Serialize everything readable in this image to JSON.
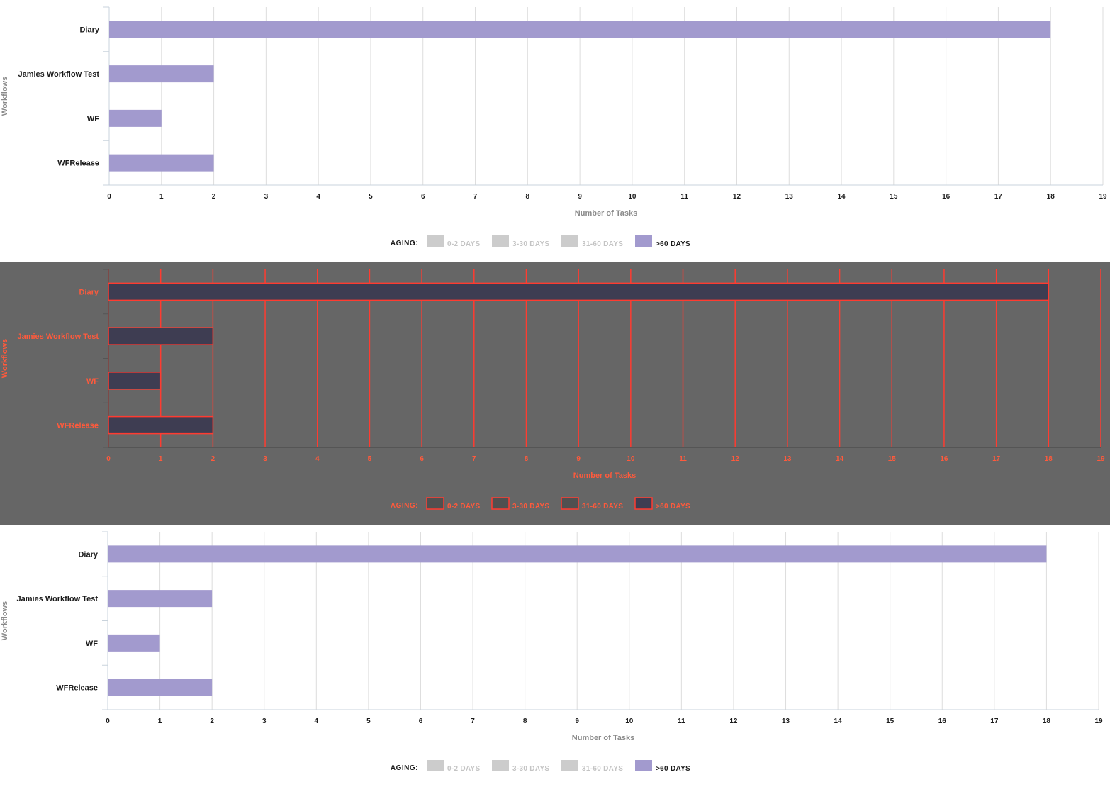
{
  "chart_data": [
    {
      "type": "bar",
      "orientation": "horizontal",
      "theme": "light",
      "categories": [
        "Diary",
        "Jamies Workflow Test",
        "WF",
        "WFRelease"
      ],
      "series": [
        {
          "name": ">60 DAYS",
          "values": [
            18,
            2,
            1,
            2
          ]
        }
      ],
      "xlabel": "Number of Tasks",
      "ylabel": "Workflows",
      "xlim": [
        0,
        19
      ],
      "grid": true,
      "legend_position": "bottom",
      "legend": {
        "title": "AGING:",
        "items": [
          {
            "label": "0-2 DAYS",
            "active": false
          },
          {
            "label": "3-30 DAYS",
            "active": false
          },
          {
            "label": "31-60 DAYS",
            "active": false
          },
          {
            "label": ">60 DAYS",
            "active": true
          }
        ]
      }
    },
    {
      "type": "bar",
      "orientation": "horizontal",
      "theme": "dark",
      "categories": [
        "Diary",
        "Jamies Workflow Test",
        "WF",
        "WFRelease"
      ],
      "series": [
        {
          "name": ">60 DAYS",
          "values": [
            18,
            2,
            1,
            2
          ]
        }
      ],
      "xlabel": "Number of Tasks",
      "ylabel": "Workflows",
      "xlim": [
        0,
        19
      ],
      "grid": true,
      "legend_position": "bottom",
      "legend": {
        "title": "AGING:",
        "items": [
          {
            "label": "0-2 DAYS",
            "active": false
          },
          {
            "label": "3-30 DAYS",
            "active": false
          },
          {
            "label": "31-60 DAYS",
            "active": false
          },
          {
            "label": ">60 DAYS",
            "active": true
          }
        ]
      }
    },
    {
      "type": "bar",
      "orientation": "horizontal",
      "theme": "light",
      "categories": [
        "Diary",
        "Jamies Workflow Test",
        "WF",
        "WFRelease"
      ],
      "series": [
        {
          "name": ">60 DAYS",
          "values": [
            18,
            2,
            1,
            2
          ]
        }
      ],
      "xlabel": "Number of Tasks",
      "ylabel": "Workflows",
      "xlim": [
        0,
        19
      ],
      "grid": true,
      "legend_position": "bottom",
      "legend": {
        "title": "AGING:",
        "items": [
          {
            "label": "0-2 DAYS",
            "active": false
          },
          {
            "label": "3-30 DAYS",
            "active": false
          },
          {
            "label": "31-60 DAYS",
            "active": false
          },
          {
            "label": ">60 DAYS",
            "active": true
          }
        ]
      }
    }
  ],
  "colors": {
    "bar": "#a29ace",
    "bar_dark": "#3e3d52",
    "legend_inactive": "#cccccc",
    "legend_inactive_text": "#c4c4c4",
    "legend_inactive_dark": "#505050",
    "gridline": "#dddddd",
    "gridline_dark": "#ff3b30",
    "axis": "#c9d3dc",
    "dark_background": "#666666"
  }
}
